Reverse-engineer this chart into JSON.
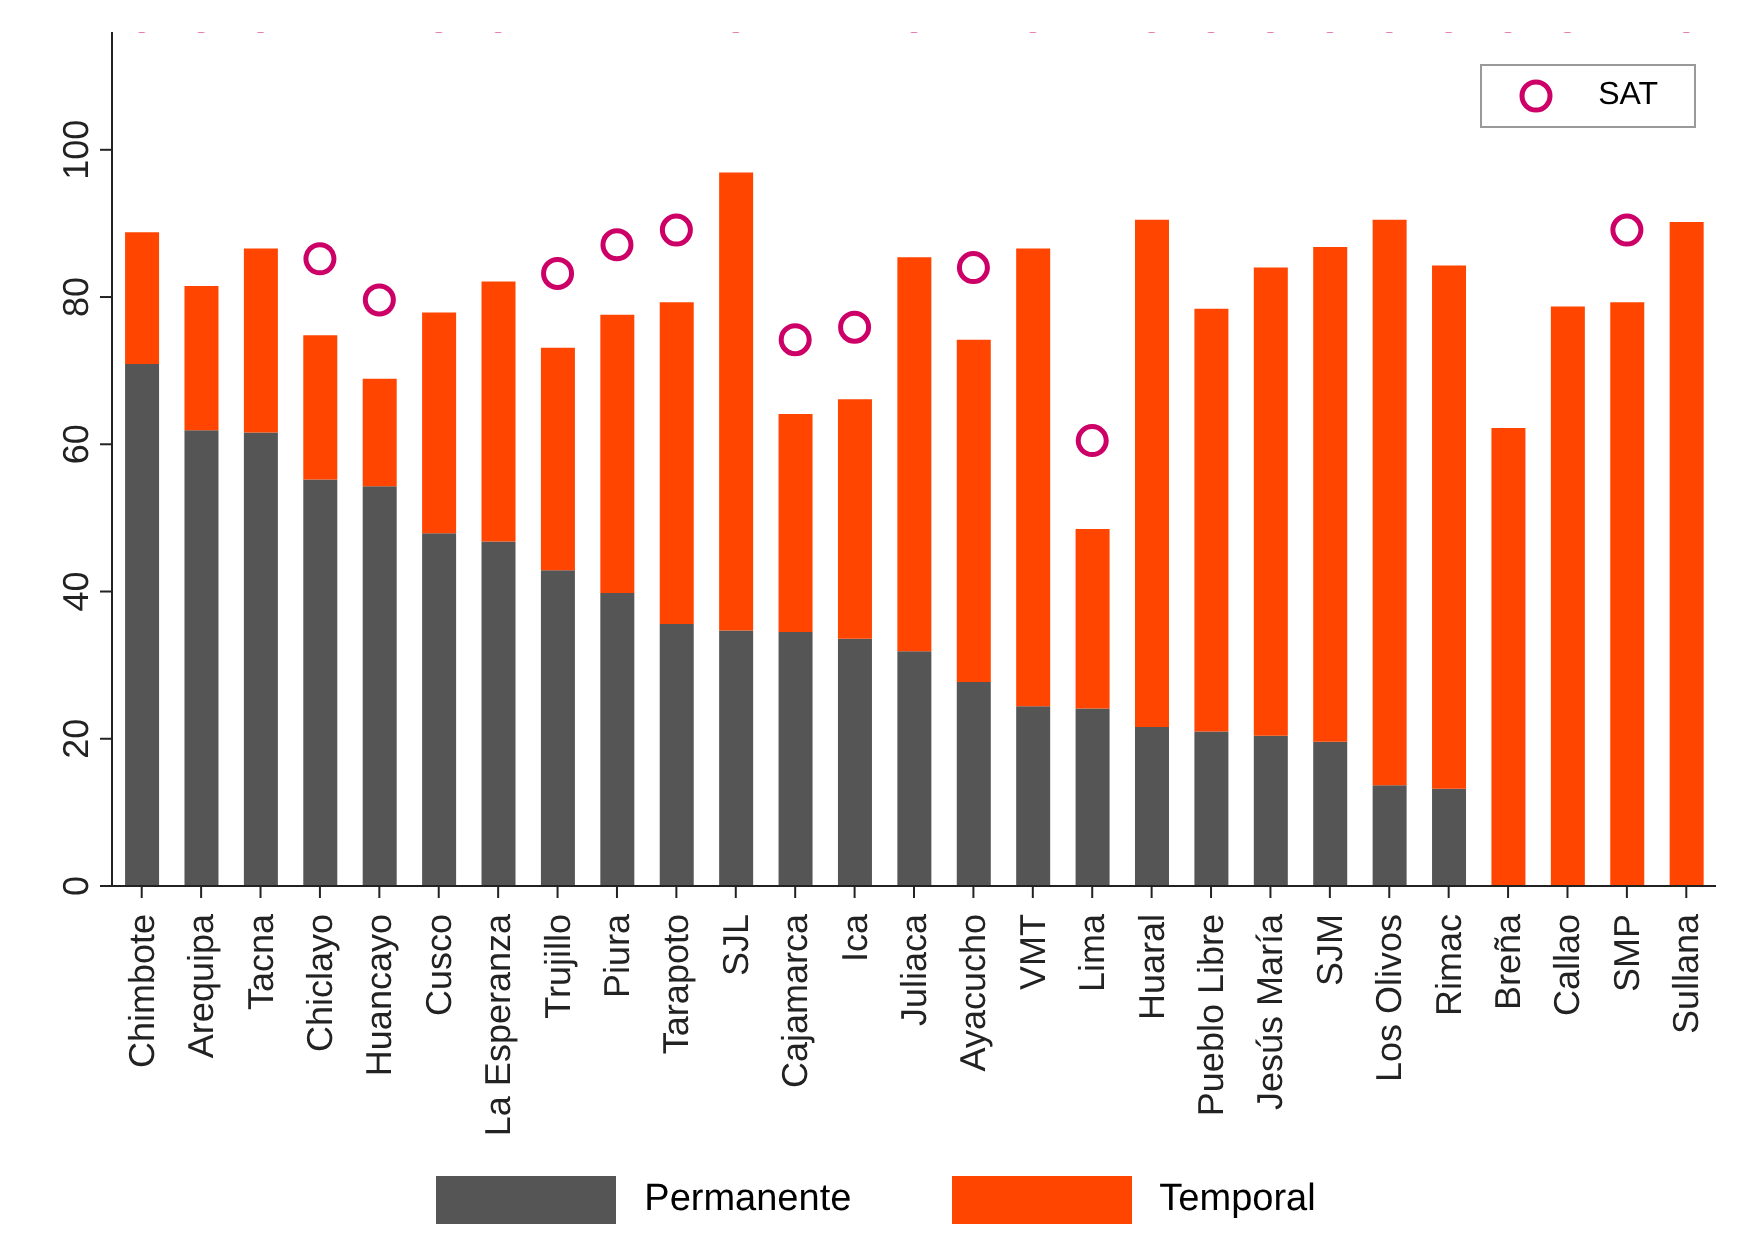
{
  "chart_data": {
    "type": "bar",
    "stacked": true,
    "categories": [
      "Chimbote",
      "Arequipa",
      "Tacna",
      "Chiclayo",
      "Huancayo",
      "Cusco",
      "La Esperanza",
      "Trujillo",
      "Piura",
      "Tarapoto",
      "SJL",
      "Cajamarca",
      "Ica",
      "Juliaca",
      "Ayacucho",
      "VMT",
      "Lima",
      "Huaral",
      "Pueblo Libre",
      "Jesús María",
      "SJM",
      "Los Olivos",
      "Rimac",
      "Breña",
      "Callao",
      "SMP",
      "Sullana"
    ],
    "series": [
      {
        "name": "Permanente",
        "color": "#555555",
        "values": [
          70.9,
          61.9,
          61.6,
          55.2,
          54.3,
          47.9,
          46.8,
          42.9,
          39.8,
          35.6,
          34.7,
          34.5,
          33.6,
          31.9,
          27.7,
          24.4,
          24.1,
          21.6,
          21.0,
          20.4,
          19.6,
          13.7,
          13.2,
          0,
          0,
          0,
          0
        ]
      },
      {
        "name": "Temporal",
        "color": "#ff4500",
        "values": [
          17.9,
          19.6,
          25.0,
          19.6,
          14.6,
          30.0,
          35.3,
          30.2,
          37.8,
          43.7,
          62.2,
          29.6,
          32.5,
          53.5,
          46.5,
          62.2,
          24.4,
          68.9,
          57.4,
          63.6,
          67.2,
          76.8,
          71.1,
          62.2,
          78.7,
          79.3,
          90.2
        ]
      },
      {
        "name": "SAT",
        "type": "scatter",
        "color": "#cc0066",
        "marker": "circle",
        "values": [
          null,
          null,
          null,
          85.2,
          79.6,
          null,
          null,
          83.2,
          87.1,
          89.1,
          null,
          74.2,
          75.9,
          null,
          84.0,
          null,
          60.5,
          null,
          null,
          null,
          null,
          null,
          null,
          null,
          null,
          89.1,
          null
        ]
      }
    ],
    "ylim": [
      0,
      116
    ],
    "yticks": [
      0,
      20,
      40,
      60,
      80,
      100
    ],
    "legend": "bottom"
  }
}
